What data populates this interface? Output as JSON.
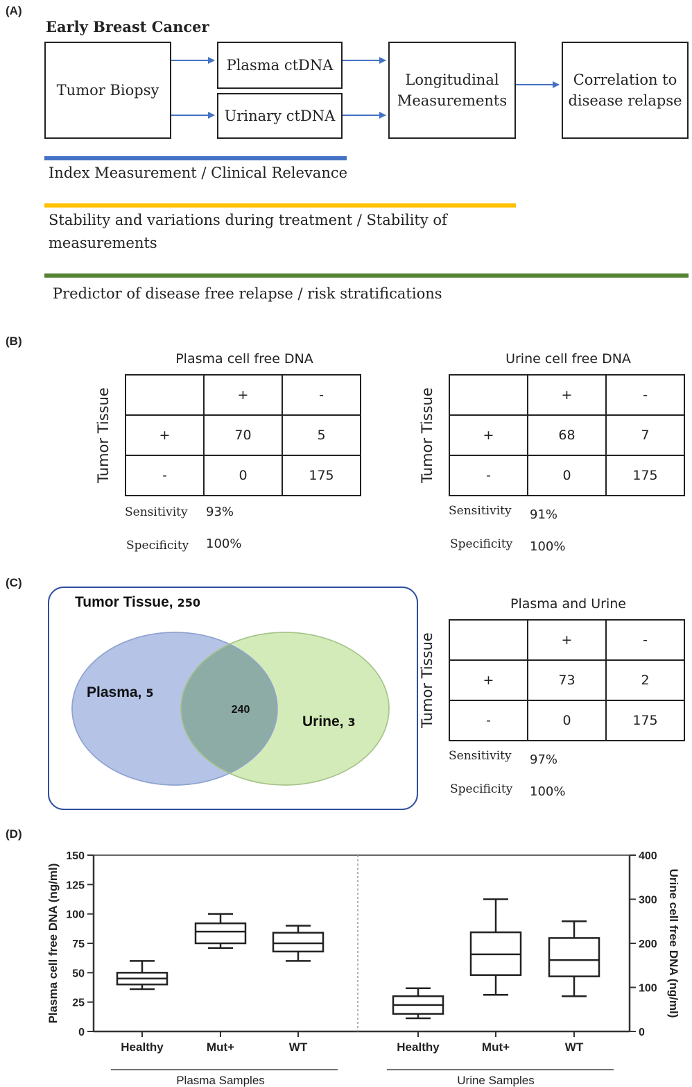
{
  "panels": {
    "a": "(A)",
    "b": "(B)",
    "c": "(C)",
    "d": "(D)"
  },
  "panelA": {
    "heading": "Early Breast Cancer",
    "boxes": {
      "biopsy": "Tumor Biopsy",
      "plasma": "Plasma ctDNA",
      "urinary": "Urinary ctDNA",
      "longitudinal": "Longitudinal Measurements",
      "correlation": "Correlation to disease relapse"
    },
    "lines": [
      {
        "text": "Index Measurement / Clinical Relevance",
        "color": "#4472c4"
      },
      {
        "text": "Stability and variations during treatment  / Stability of measurements",
        "color": "#ffc000"
      },
      {
        "text": "Predictor of disease free relapse / risk stratifications",
        "color": "#548235"
      }
    ]
  },
  "panelB": {
    "row_axis": "Tumor Tissue",
    "tables": [
      {
        "title": "Plasma cell free DNA",
        "col_headers": [
          "+",
          "-"
        ],
        "rows": [
          {
            "label": "+",
            "values": [
              "70",
              "5"
            ]
          },
          {
            "label": "-",
            "values": [
              "0",
              "175"
            ]
          }
        ],
        "sensitivity_label": "Sensitivity",
        "sensitivity": "93%",
        "specificity_label": "Specificity",
        "specificity": "100%"
      },
      {
        "title": "Urine cell free DNA",
        "col_headers": [
          "+",
          "-"
        ],
        "rows": [
          {
            "label": "+",
            "values": [
              "68",
              "7"
            ]
          },
          {
            "label": "-",
            "values": [
              "0",
              "175"
            ]
          }
        ],
        "sensitivity_label": "Sensitivity",
        "sensitivity": "91%",
        "specificity_label": "Specificity",
        "specificity": "100%"
      }
    ]
  },
  "panelC": {
    "venn": {
      "title_name": "Tumor Tissue,",
      "title_count": "250",
      "plasma_name": "Plasma,",
      "plasma_count": "5",
      "overlap": "240",
      "urine_name": "Urine,",
      "urine_count": "3",
      "colors": {
        "plasma": "#b4c3e6",
        "urine": "#d3ebb8",
        "overlap": "#8eaca6",
        "frame": "#2f4f9f"
      }
    },
    "table": {
      "title": "Plasma and Urine",
      "row_axis": "Tumor Tissue",
      "col_headers": [
        "+",
        "-"
      ],
      "rows": [
        {
          "label": "+",
          "values": [
            "73",
            "2"
          ]
        },
        {
          "label": "-",
          "values": [
            "0",
            "175"
          ]
        }
      ],
      "sensitivity_label": "Sensitivity",
      "sensitivity": "97%",
      "specificity_label": "Specificity",
      "specificity": "100%"
    }
  },
  "chart_data": {
    "type": "box",
    "ylabel_left": "Plasma cell free DNA (ng/ml)",
    "ylabel_right": "Urine cell free DNA (ng/ml)",
    "ylim_left": [
      0,
      150
    ],
    "ylim_right": [
      0,
      400
    ],
    "yticks_left": [
      "0",
      "25",
      "50",
      "75",
      "100",
      "125",
      "150"
    ],
    "yticks_right": [
      "0",
      "100",
      "200",
      "300",
      "400"
    ],
    "groups": [
      {
        "name": "Plasma Samples",
        "axis": "left",
        "boxes": [
          {
            "category": "Healthy",
            "min": 36,
            "q1": 40,
            "median": 45,
            "q3": 50,
            "max": 60
          },
          {
            "category": "Mut+",
            "min": 71,
            "q1": 75,
            "median": 85,
            "q3": 92,
            "max": 100
          },
          {
            "category": "WT",
            "min": 60,
            "q1": 68,
            "median": 75,
            "q3": 84,
            "max": 90
          }
        ]
      },
      {
        "name": "Urine Samples",
        "axis": "right",
        "boxes": [
          {
            "category": "Healthy",
            "min": 30,
            "q1": 40,
            "median": 60,
            "q3": 80,
            "max": 98
          },
          {
            "category": "Mut+",
            "min": 83,
            "q1": 128,
            "median": 175,
            "q3": 225,
            "max": 300
          },
          {
            "category": "WT",
            "min": 80,
            "q1": 125,
            "median": 162,
            "q3": 212,
            "max": 250
          }
        ]
      }
    ]
  }
}
